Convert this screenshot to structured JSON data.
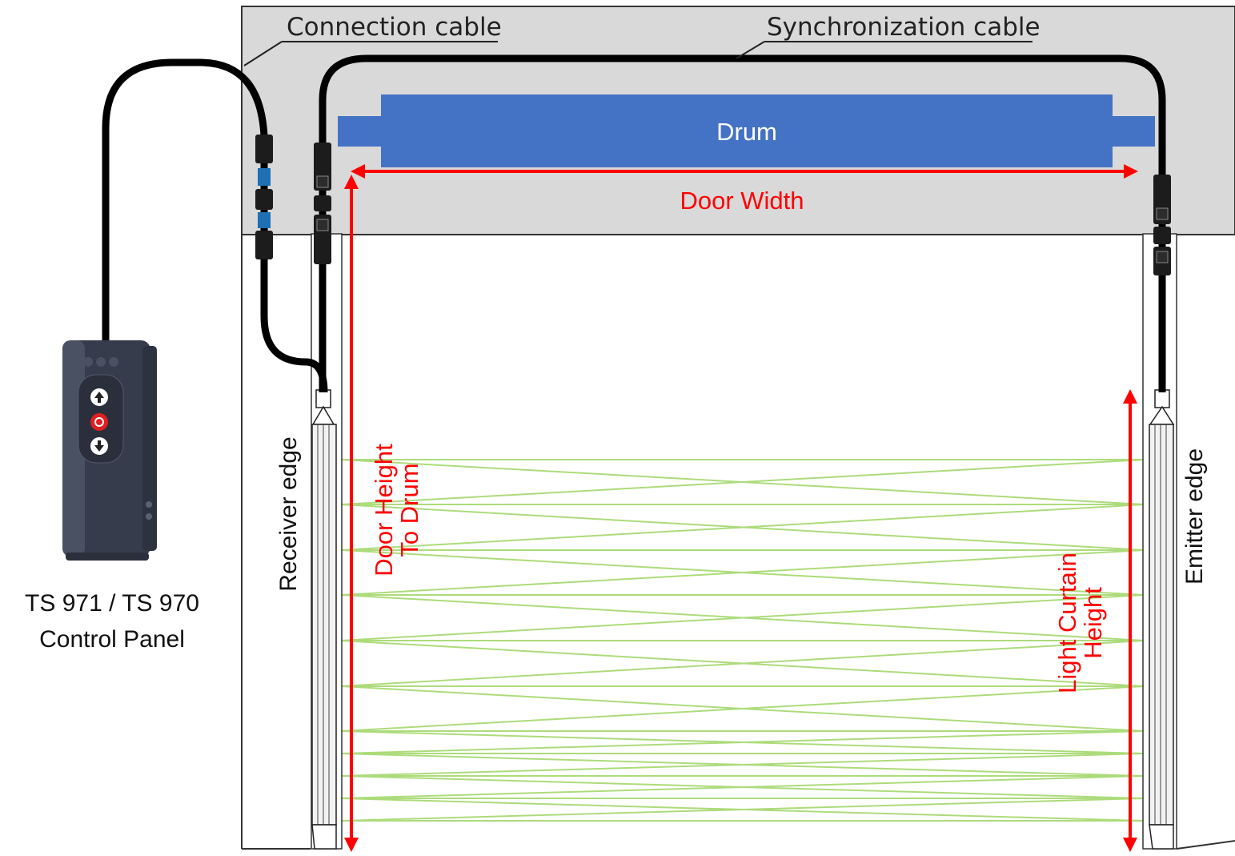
{
  "labels": {
    "connection_cable": "Connection cable",
    "synchronization_cable": "Synchronization cable",
    "drum": "Drum",
    "door_width": "Door Width",
    "door_height_line1": "Door Height",
    "door_height_line2": "To Drum",
    "light_curtain_line1": "Light Curtain",
    "light_curtain_line2": "Height",
    "receiver_edge": "Receiver edge",
    "emitter_edge": "Emitter edge",
    "control_panel_line1": "TS 971 / TS 970",
    "control_panel_line2": "Control Panel"
  },
  "colors": {
    "housing": "#d9d9d9",
    "drum": "#4472c4",
    "dimension": "#ff0000",
    "beams": "#92d050",
    "cable": "#000000",
    "panel": "#3a4152"
  },
  "icons": {
    "up_button": "arrow-up-icon",
    "stop_button": "stop-icon",
    "down_button": "arrow-down-icon"
  }
}
